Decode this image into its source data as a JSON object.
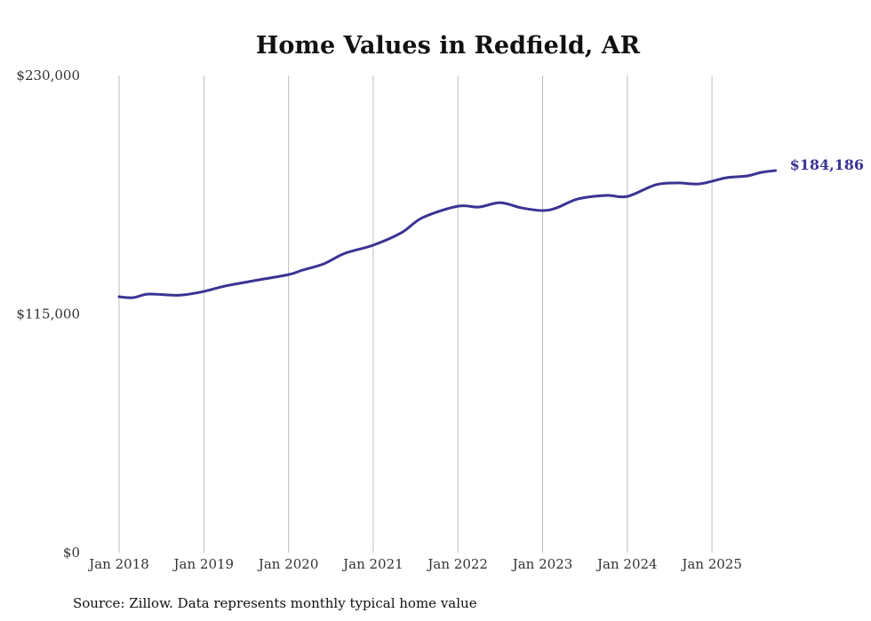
{
  "chart_data": {
    "type": "line",
    "title": "Home Values in Redfield, AR",
    "xlabel": "",
    "ylabel": "",
    "ylim": [
      0,
      230000
    ],
    "y_ticks": [
      {
        "value": 0,
        "label": "$0"
      },
      {
        "value": 115000,
        "label": "$115,000"
      },
      {
        "value": 230000,
        "label": "$230,000"
      }
    ],
    "x_ticks": [
      "Jan 2018",
      "Jan 2019",
      "Jan 2020",
      "Jan 2021",
      "Jan 2022",
      "Jan 2023",
      "Jan 2024",
      "Jan 2025"
    ],
    "grid": "vertical",
    "line_color": "#3b3393",
    "end_label": "$184,186",
    "series": [
      {
        "name": "Typical home value",
        "x": [
          "2018-01",
          "2018-03",
          "2018-05",
          "2018-08",
          "2018-10",
          "2019-01",
          "2019-04",
          "2019-08",
          "2020-01",
          "2020-03",
          "2020-06",
          "2020-09",
          "2021-01",
          "2021-05",
          "2021-08",
          "2022-01",
          "2022-04",
          "2022-07",
          "2022-10",
          "2023-01",
          "2023-03",
          "2023-06",
          "2023-10",
          "2024-01",
          "2024-05",
          "2024-08",
          "2024-11",
          "2025-01",
          "2025-03",
          "2025-06",
          "2025-08",
          "2025-10"
        ],
        "values": [
          123350,
          122900,
          124600,
          124200,
          124200,
          125900,
          128500,
          131000,
          134000,
          136200,
          139200,
          144300,
          148200,
          154200,
          161500,
          167000,
          166600,
          168700,
          166200,
          164900,
          166200,
          170500,
          172200,
          171700,
          177300,
          178200,
          177700,
          179000,
          180700,
          181600,
          183300,
          184186
        ]
      }
    ]
  },
  "footer": {
    "source": "Source: Zillow. Data represents monthly typical home value"
  }
}
